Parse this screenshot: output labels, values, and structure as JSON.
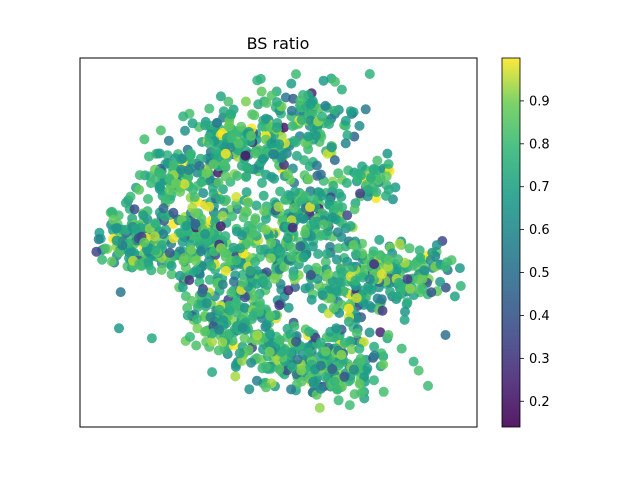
{
  "chart_data": {
    "type": "scatter",
    "title": "BS ratio",
    "xlabel": "",
    "ylabel": "",
    "x_ticks_visible": false,
    "y_ticks_visible": false,
    "grid": false,
    "colormap": "viridis",
    "point_alpha": 0.85,
    "n_points_approx": 1800,
    "colorbar": {
      "range": [
        0.14,
        1.0
      ],
      "ticks": [
        0.2,
        0.3,
        0.4,
        0.5,
        0.6,
        0.7,
        0.8,
        0.9
      ],
      "tick_labels": [
        "0.2",
        "0.3",
        "0.4",
        "0.5",
        "0.6",
        "0.7",
        "0.8",
        "0.9"
      ]
    },
    "colors": {
      "viridis_low": "#440154",
      "viridis_mid": "#21918c",
      "viridis_high": "#fde725"
    }
  }
}
